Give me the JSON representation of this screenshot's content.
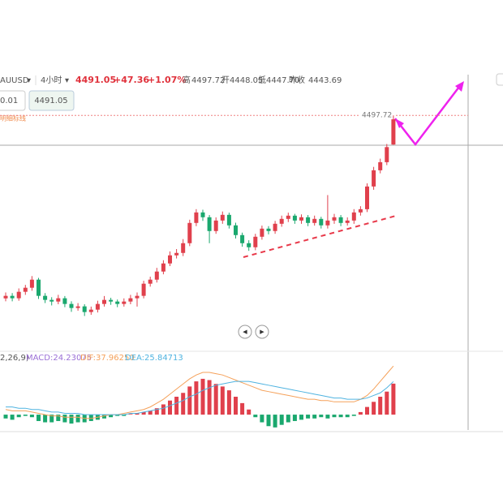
{
  "header": {
    "symbol": "AUUSD",
    "interval": "4小时",
    "price": "4491.05",
    "change": "+47.36",
    "change_pct": "+1.07%",
    "high_label": "高",
    "high": "4497.72",
    "open_label": "开",
    "open": "4448.05",
    "low_label": "低",
    "low": "4447.70",
    "prev_close_label": "昨收",
    "prev_close": "4443.69",
    "line_label": "明细标线"
  },
  "inputs": [
    "0.01",
    "4491.05"
  ],
  "chart_data": [
    {
      "type": "candlestick",
      "up_color": "#e0404c",
      "down_color": "#1aa86e",
      "ylim": [
        4100,
        4563
      ],
      "price_line": 4497.72,
      "price_line_color": "#f08080",
      "candles": [
        [
          4186,
          4196,
          4181,
          4190.3
        ],
        [
          4190.3,
          4195,
          4181,
          4186.2
        ],
        [
          4186.2,
          4203,
          4182,
          4197.2
        ],
        [
          4197.2,
          4209,
          4192,
          4204.1
        ],
        [
          4204.1,
          4224,
          4199,
          4217.9
        ],
        [
          4217.9,
          4221,
          4185,
          4190.3
        ],
        [
          4190.3,
          4195,
          4178,
          4183.4
        ],
        [
          4183.4,
          4188,
          4174,
          4180.6
        ],
        [
          4180.6,
          4192,
          4176,
          4186.2
        ],
        [
          4186.2,
          4190,
          4171,
          4176.5
        ],
        [
          4176.5,
          4181,
          4163,
          4169.6
        ],
        [
          4169.6,
          4178,
          4165,
          4172.4
        ],
        [
          4172.4,
          4176,
          4156,
          4162.7
        ],
        [
          4162.7,
          4172,
          4158,
          4166.8
        ],
        [
          4166.8,
          4182,
          4162,
          4176.5
        ],
        [
          4176.5,
          4190,
          4172,
          4183.4
        ],
        [
          4183.4,
          4187,
          4175,
          4180.6
        ],
        [
          4180.6,
          4184,
          4171,
          4176.5
        ],
        [
          4176.5,
          4186,
          4172,
          4180.6
        ],
        [
          4180.6,
          4192,
          4176,
          4186.2
        ],
        [
          4186.2,
          4196,
          4172,
          4190.3
        ],
        [
          4190.3,
          4216,
          4186,
          4211
        ],
        [
          4211,
          4223,
          4206,
          4217.9
        ],
        [
          4217.9,
          4238,
          4213,
          4231.7
        ],
        [
          4231.7,
          4251,
          4227,
          4245.5
        ],
        [
          4245.5,
          4266,
          4241,
          4259.3
        ],
        [
          4259.3,
          4270,
          4254,
          4263.4
        ],
        [
          4263.4,
          4287,
          4258,
          4280
        ],
        [
          4280,
          4320,
          4275,
          4314.5
        ],
        [
          4314.5,
          4338,
          4309,
          4332.4
        ],
        [
          4332.4,
          4337,
          4318,
          4324.2
        ],
        [
          4324.2,
          4328,
          4280,
          4300.7
        ],
        [
          4300.7,
          4324,
          4296,
          4318.6
        ],
        [
          4318.6,
          4334,
          4313,
          4328.3
        ],
        [
          4328.3,
          4332,
          4305,
          4310.4
        ],
        [
          4310.4,
          4315,
          4288,
          4293.8
        ],
        [
          4293.8,
          4298,
          4274,
          4280
        ],
        [
          4280,
          4285,
          4267,
          4273.1
        ],
        [
          4273.1,
          4296,
          4268,
          4291
        ],
        [
          4291,
          4310,
          4286,
          4304.8
        ],
        [
          4304.8,
          4309,
          4295,
          4300.7
        ],
        [
          4300.7,
          4318,
          4296,
          4313.1
        ],
        [
          4313.1,
          4327,
          4308,
          4321.4
        ],
        [
          4321.4,
          4332,
          4316,
          4326.9
        ],
        [
          4326.9,
          4330,
          4313,
          4318.6
        ],
        [
          4318.6,
          4329,
          4313,
          4324.2
        ],
        [
          4324.2,
          4328,
          4309,
          4314.5
        ],
        [
          4314.5,
          4327,
          4310,
          4321.4
        ],
        [
          4321.4,
          4325,
          4305,
          4310.4
        ],
        [
          4310.4,
          4362,
          4305,
          4318.6
        ],
        [
          4318.6,
          4330,
          4313,
          4324.2
        ],
        [
          4324.2,
          4328,
          4309,
          4314.5
        ],
        [
          4314.5,
          4324,
          4310,
          4318.6
        ],
        [
          4318.6,
          4338,
          4313,
          4332.4
        ],
        [
          4332.4,
          4343,
          4327,
          4337.9
        ],
        [
          4337.9,
          4382,
          4333,
          4376.6
        ],
        [
          4376.6,
          4410,
          4371,
          4404.2
        ],
        [
          4404.2,
          4424,
          4399,
          4418
        ],
        [
          4418,
          4449,
          4413,
          4443.69
        ],
        [
          4448.05,
          4497.72,
          4447.7,
          4491.05
        ]
      ]
    },
    {
      "type": "macd",
      "params": "2,26,9)",
      "params_color": "#555",
      "ylim": [
        -12,
        40
      ],
      "histogram": {
        "name": "MACD:24.23075",
        "color": "#9b6fd6",
        "up_color": "#e0404c",
        "down_color": "#1aa86e",
        "values": [
          -3,
          -4,
          -2,
          -1,
          -2,
          -5,
          -6,
          -6,
          -5,
          -6,
          -7,
          -6,
          -6,
          -5,
          -4,
          -3,
          -2,
          -1,
          -1,
          0.5,
          1,
          2,
          3,
          5,
          8,
          11,
          14,
          17,
          22,
          26,
          28,
          27,
          24,
          22,
          19,
          14,
          9,
          4,
          -2,
          -6,
          -9,
          -10,
          -8,
          -6,
          -5,
          -4,
          -3,
          -3,
          -2,
          -3,
          -2,
          -2,
          -2,
          -1,
          2,
          6,
          10,
          14,
          18,
          24.23
        ]
      },
      "series": [
        {
          "name": "DIF:37.96250",
          "color": "#f5a15a",
          "values": [
            4,
            3,
            3,
            3,
            2,
            1,
            0,
            -1,
            -1,
            -2,
            -2,
            -2,
            -3,
            -3,
            -2,
            -1,
            0,
            0,
            1,
            2,
            3,
            4,
            6,
            9,
            12,
            16,
            20,
            24,
            28,
            31,
            33,
            33,
            32,
            31,
            29,
            27,
            25,
            23,
            21,
            19,
            18,
            17,
            16,
            15,
            14,
            13,
            12,
            12,
            11,
            11,
            10,
            10,
            10,
            10,
            12,
            15,
            20,
            26,
            32,
            37.96
          ]
        },
        {
          "name": "DEA:25.84713",
          "color": "#4fb3e0",
          "values": [
            6,
            6,
            5,
            5,
            4,
            4,
            3,
            2,
            2,
            1,
            1,
            1,
            0,
            0,
            0,
            0,
            0,
            0,
            0,
            1,
            1,
            2,
            3,
            4,
            5,
            7,
            9,
            11,
            14,
            16,
            19,
            21,
            23,
            24,
            25,
            26,
            26,
            26,
            25,
            24,
            23,
            22,
            21,
            20,
            19,
            18,
            17,
            16,
            15,
            14,
            13,
            13,
            12,
            12,
            12,
            13,
            15,
            17,
            21,
            25.85
          ]
        }
      ]
    }
  ]
}
